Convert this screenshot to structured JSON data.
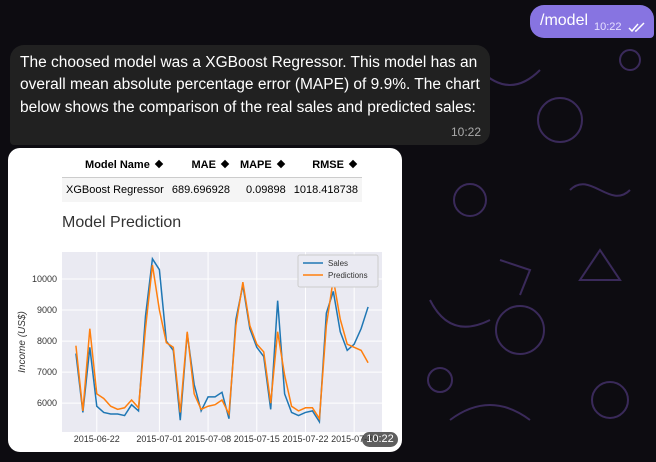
{
  "messages": [
    {
      "text": "/model",
      "time": "10:22"
    },
    {
      "text": "The choosed model was a XGBoost Regressor. This model has an overall mean absolute percentage error (MAPE) of 9.9%. The chart below shows the comparison of the real sales and predicted sales:",
      "time": "10:22"
    },
    {
      "time": "10:22",
      "table": {
        "columns": [
          "Model Name",
          "MAE",
          "MAPE",
          "RMSE"
        ],
        "rows": [
          [
            "XGBoost Regressor",
            "689.696928",
            "0.09898",
            "1018.418738"
          ]
        ]
      },
      "chart_data": {
        "type": "line",
        "title": "Model Prediction",
        "y_label": "Income (US$)",
        "x": [
          "2015-06-19",
          "2015-06-20",
          "2015-06-21",
          "2015-06-22",
          "2015-06-23",
          "2015-06-24",
          "2015-06-25",
          "2015-06-26",
          "2015-06-27",
          "2015-06-28",
          "2015-06-29",
          "2015-06-30",
          "2015-07-01",
          "2015-07-02",
          "2015-07-03",
          "2015-07-04",
          "2015-07-05",
          "2015-07-06",
          "2015-07-07",
          "2015-07-08",
          "2015-07-09",
          "2015-07-10",
          "2015-07-11",
          "2015-07-12",
          "2015-07-13",
          "2015-07-14",
          "2015-07-15",
          "2015-07-16",
          "2015-07-17",
          "2015-07-18",
          "2015-07-19",
          "2015-07-20",
          "2015-07-21",
          "2015-07-22",
          "2015-07-23",
          "2015-07-24",
          "2015-07-25",
          "2015-07-26",
          "2015-07-27",
          "2015-07-28",
          "2015-07-29",
          "2015-07-30",
          "2015-07-31"
        ],
        "series": [
          {
            "name": "Sales",
            "color": "#1f77b4",
            "values": [
              7600,
              5700,
              7800,
              5900,
              5700,
              5650,
              5650,
              5600,
              5950,
              5750,
              8800,
              10650,
              10300,
              8000,
              7700,
              5450,
              8250,
              6600,
              5750,
              6200,
              6200,
              6350,
              5500,
              8700,
              9800,
              8400,
              7800,
              7500,
              5800,
              9300,
              6300,
              5700,
              5600,
              5700,
              5750,
              5400,
              8900,
              9600,
              8300,
              7700,
              7900,
              8400,
              9100
            ]
          },
          {
            "name": "Predictions",
            "color": "#ff7f0e",
            "values": [
              7850,
              5750,
              8400,
              6300,
              6150,
              5900,
              5800,
              5850,
              6100,
              5850,
              8400,
              10450,
              9000,
              7950,
              7800,
              5700,
              8300,
              6300,
              5800,
              5900,
              5950,
              6100,
              5650,
              8500,
              9900,
              8500,
              7900,
              7650,
              6000,
              8300,
              6900,
              5900,
              5750,
              5850,
              5850,
              5500,
              8500,
              10000,
              8700,
              7900,
              7800,
              7700,
              7300
            ]
          }
        ],
        "xlim": [
          "2015-06-17",
          "2015-08-02"
        ],
        "xticks": [
          "2015-06-22",
          "2015-07-01",
          "2015-07-08",
          "2015-07-15",
          "2015-07-22",
          "2015-07-29"
        ],
        "ylim": [
          5070,
          10870
        ],
        "yticks": [
          6000,
          7000,
          8000,
          9000,
          10000
        ],
        "grid": true,
        "legend": "upper right"
      }
    }
  ]
}
